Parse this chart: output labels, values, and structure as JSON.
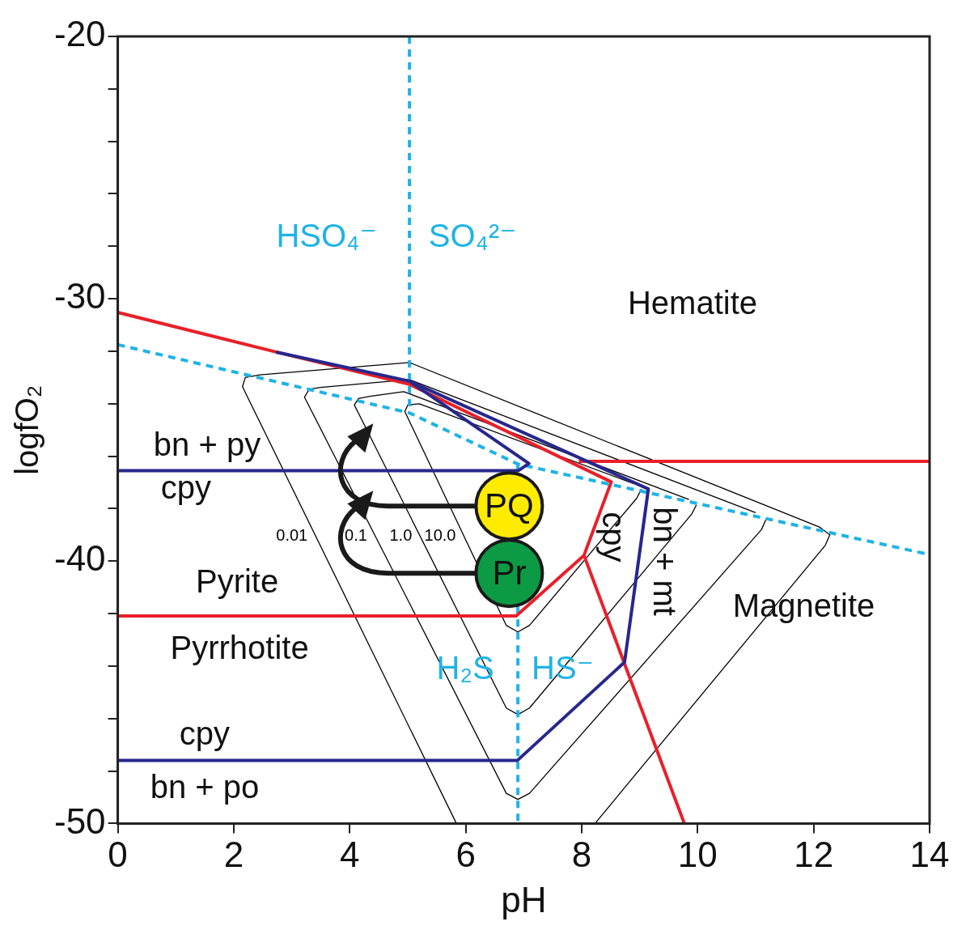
{
  "chart_data": {
    "type": "line",
    "xlabel": "pH",
    "ylabel": "logfO₂",
    "xlim": [
      0,
      14
    ],
    "xticks": [
      0,
      2,
      4,
      6,
      8,
      10,
      12,
      14
    ],
    "ylim": [
      -50,
      -20
    ],
    "yticks": [
      -50,
      {
        "value": -48,
        "label": null
      },
      {
        "value": -46,
        "label": null
      },
      {
        "value": -44,
        "label": null
      },
      {
        "value": -42,
        "label": null
      },
      -40,
      {
        "value": -38,
        "label": null
      },
      {
        "value": -36,
        "label": null
      },
      {
        "value": -34,
        "label": null
      },
      {
        "value": -32,
        "label": null
      },
      -30,
      {
        "value": -28,
        "label": null
      },
      {
        "value": -26,
        "label": null
      },
      {
        "value": -24,
        "label": null
      },
      {
        "value": -22,
        "label": null
      },
      -20
    ],
    "legend": false,
    "grid": false,
    "series": [
      {
        "type": "line",
        "name": "0.01",
        "color": "#000000",
        "line_style": "solid",
        "marker": "none",
        "x": [
          5.84,
          2.15,
          2.2,
          2.45,
          5.03,
          12.1,
          12.28,
          12.2,
          8.23
        ],
        "values": [
          -50,
          -33.35,
          -33.0,
          -32.9,
          -32.43,
          -38.7,
          -39.0,
          -39.4,
          -50
        ]
      },
      {
        "type": "line",
        "name": "0.1",
        "color": "#000000",
        "line_style": "solid",
        "marker": "none",
        "x": [
          11.18,
          11.1,
          7.1,
          6.9,
          6.7,
          3.22,
          3.3,
          3.5,
          5.03,
          11.0
        ],
        "values": [
          -38.4,
          -38.8,
          -48.85,
          -49.08,
          -48.85,
          -33.75,
          -33.45,
          -33.38,
          -33.08,
          -38.15
        ]
      },
      {
        "type": "line",
        "name": "1.0",
        "color": "#000000",
        "line_style": "solid",
        "marker": "none",
        "x": [
          9.98,
          9.9,
          7.1,
          6.9,
          6.7,
          4.08,
          4.15,
          4.35,
          4.93,
          9.85
        ],
        "values": [
          -37.85,
          -38.2,
          -45.6,
          -45.85,
          -45.6,
          -34.05,
          -33.8,
          -33.72,
          -33.54,
          -37.65
        ]
      },
      {
        "type": "line",
        "name": "10.0",
        "color": "#000000",
        "line_style": "solid",
        "marker": "none",
        "x": [
          9.03,
          8.95,
          7.1,
          6.9,
          6.7,
          4.95,
          5.0,
          5.2,
          8.9
        ],
        "values": [
          -37.25,
          -37.6,
          -42.45,
          -42.7,
          -42.45,
          -34.3,
          -34.05,
          -34.0,
          -37.05
        ]
      },
      {
        "type": "line",
        "color": "#1fb3e6",
        "line_style": "dashed",
        "marker": "none",
        "x": [
          5.03,
          5.03
        ],
        "values": [
          -20,
          -34.35
        ]
      },
      {
        "type": "line",
        "color": "#1fb3e6",
        "line_style": "dashed",
        "marker": "none",
        "x": [
          0,
          5.03,
          6.9,
          14
        ],
        "values": [
          -31.75,
          -34.35,
          -36.3,
          -39.75
        ]
      },
      {
        "type": "line",
        "color": "#1fb3e6",
        "line_style": "dashed",
        "marker": "none",
        "x": [
          6.9,
          6.9
        ],
        "values": [
          -36.3,
          -50
        ]
      },
      {
        "type": "line",
        "color": "#e8202a",
        "line_style": "solid",
        "marker": "none",
        "x": [
          0,
          2.73,
          5.03,
          8.51,
          8.04,
          6.87,
          0
        ],
        "values": [
          -30.52,
          -32.03,
          -33.26,
          -36.98,
          -39.78,
          -42.09,
          -42.09
        ]
      },
      {
        "type": "line",
        "color": "#e8202a",
        "line_style": "solid",
        "marker": "none",
        "x": [
          8.04,
          9.77
        ],
        "values": [
          -39.78,
          -50
        ]
      },
      {
        "type": "line",
        "color": "#e8202a",
        "line_style": "solid",
        "marker": "none",
        "x": [
          7.95,
          14
        ],
        "values": [
          -36.2,
          -36.2
        ]
      },
      {
        "type": "line",
        "color": "#27278c",
        "line_style": "solid",
        "marker": "none",
        "x": [
          2.73,
          5.03,
          7.09,
          6.91,
          0
        ],
        "values": [
          -32.03,
          -33.14,
          -36.28,
          -36.55,
          -36.55
        ]
      },
      {
        "type": "line",
        "color": "#27278c",
        "line_style": "solid",
        "marker": "none",
        "x": [
          5.03,
          9.15,
          8.74,
          6.89,
          0
        ],
        "values": [
          -33.14,
          -37.25,
          -43.85,
          -47.6,
          -47.6
        ]
      },
      {
        "type": "scatter",
        "name": "PQ",
        "color": "#ffeb00",
        "marker": "circle",
        "x": [
          6.75
        ],
        "values": [
          -37.9
        ]
      },
      {
        "type": "scatter",
        "name": "Pr",
        "color": "#0c9a45",
        "marker": "circle",
        "x": [
          6.75
        ],
        "values": [
          -40.46
        ]
      }
    ],
    "annotations": [
      "HSO₄⁻",
      "SO₄²⁻",
      "Hematite",
      "bn + py",
      "cpy",
      "Pyrite",
      "Pyrrhotite",
      "H₂S",
      "HS⁻",
      "Magnetite",
      "cpy",
      "bn + mt",
      "cpy",
      "bn + po"
    ]
  }
}
